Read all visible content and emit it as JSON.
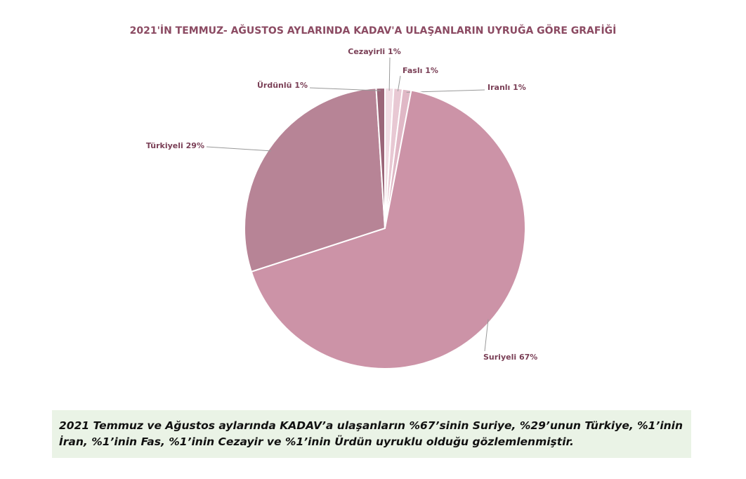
{
  "chart_data": {
    "type": "pie",
    "title": "2021'İN TEMMUZ- AĞUSTOS AYLARINDA KADAV'A ULAŞANLARIN UYRUĞA GÖRE GRAFİĞİ",
    "categories": [
      "Cezayirli",
      "Faslı",
      "Iranlı",
      "Suriyeli",
      "Türkiyeli",
      "Ürdünlü"
    ],
    "values": [
      1,
      1,
      1,
      67,
      29,
      1
    ],
    "value_labels": [
      "1%",
      "1%",
      "1%",
      "67%",
      "29%",
      "1%"
    ],
    "colors": [
      "#f1dde4",
      "#e8c8d3",
      "#e0b8c6",
      "#cc93a7",
      "#b78496",
      "#9b6679"
    ]
  },
  "note": "2021 Temmuz ve Ağustos aylarında KADAV’a ulaşanların %67’sinin Suriye, %29’unun Türkiye, %1’inin İran, %1’inin Fas, %1’inin Cezayir ve %1’inin Ürdün uyruklu olduğu gözlemlenmiştir."
}
